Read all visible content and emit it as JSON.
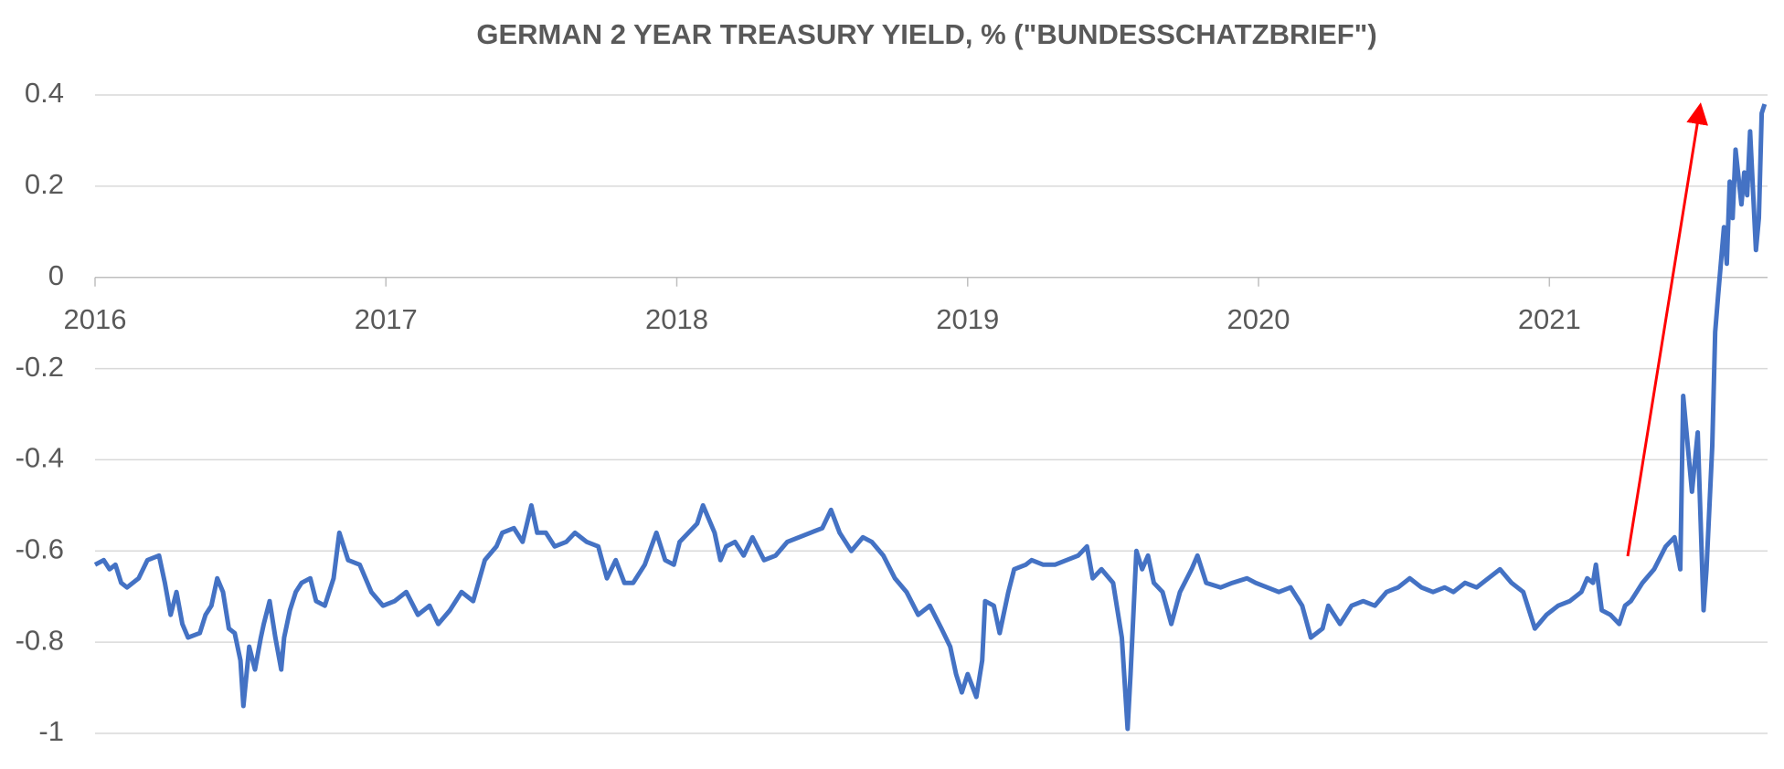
{
  "chart_data": {
    "type": "line",
    "title": "GERMAN 2 YEAR TREASURY YIELD, % (\"BUNDESSCHATZBRIEF\")",
    "x": [
      2016.0,
      2016.03,
      2016.05,
      2016.07,
      2016.09,
      2016.11,
      2016.15,
      2016.18,
      2016.22,
      2016.24,
      2016.26,
      2016.28,
      2016.3,
      2016.32,
      2016.36,
      2016.38,
      2016.4,
      2016.42,
      2016.44,
      2016.46,
      2016.48,
      2016.5,
      2016.51,
      2016.53,
      2016.55,
      2016.57,
      2016.58,
      2016.6,
      2016.62,
      2016.64,
      2016.65,
      2016.67,
      2016.69,
      2016.71,
      2016.74,
      2016.76,
      2016.79,
      2016.82,
      2016.84,
      2016.87,
      2016.91,
      2016.95,
      2016.99,
      2017.03,
      2017.07,
      2017.11,
      2017.15,
      2017.18,
      2017.22,
      2017.26,
      2017.3,
      2017.34,
      2017.38,
      2017.4,
      2017.44,
      2017.47,
      2017.5,
      2017.52,
      2017.55,
      2017.58,
      2017.62,
      2017.65,
      2017.69,
      2017.73,
      2017.76,
      2017.79,
      2017.82,
      2017.85,
      2017.89,
      2017.93,
      2017.96,
      2017.99,
      2018.01,
      2018.04,
      2018.07,
      2018.09,
      2018.13,
      2018.15,
      2018.17,
      2018.2,
      2018.23,
      2018.26,
      2018.3,
      2018.34,
      2018.38,
      2018.42,
      2018.46,
      2018.5,
      2018.53,
      2018.56,
      2018.6,
      2018.64,
      2018.67,
      2018.71,
      2018.75,
      2018.79,
      2018.83,
      2018.87,
      2018.91,
      2018.94,
      2018.96,
      2018.98,
      2019.0,
      2019.03,
      2019.05,
      2019.06,
      2019.09,
      2019.11,
      2019.14,
      2019.16,
      2019.2,
      2019.22,
      2019.26,
      2019.3,
      2019.34,
      2019.38,
      2019.41,
      2019.43,
      2019.46,
      2019.5,
      2019.53,
      2019.55,
      2019.56,
      2019.58,
      2019.6,
      2019.62,
      2019.64,
      2019.67,
      2019.7,
      2019.73,
      2019.77,
      2019.79,
      2019.82,
      2019.87,
      2019.91,
      2019.96,
      2019.99,
      2020.03,
      2020.07,
      2020.11,
      2020.15,
      2020.18,
      2020.22,
      2020.24,
      2020.28,
      2020.32,
      2020.36,
      2020.4,
      2020.44,
      2020.48,
      2020.52,
      2020.56,
      2020.6,
      2020.64,
      2020.67,
      2020.71,
      2020.75,
      2020.79,
      2020.83,
      2020.87,
      2020.91,
      2020.95,
      2020.99,
      2021.03,
      2021.07,
      2021.11,
      2021.13,
      2021.15,
      2021.16,
      2021.18,
      2021.21,
      2021.24,
      2021.26,
      2021.28,
      2021.3,
      2021.32,
      2021.36,
      2021.4,
      2021.43,
      2021.45,
      2021.46,
      2021.47,
      2021.49,
      2021.51,
      2021.53,
      2021.54,
      2021.56,
      2021.57,
      2021.58,
      2021.6,
      2021.61,
      2021.62,
      2021.63,
      2021.64,
      2021.66,
      2021.67,
      2021.68,
      2021.69,
      2021.71,
      2021.72,
      2021.73,
      2021.74
    ],
    "series": [
      {
        "color": "#4472c4",
        "values": [
          -0.63,
          -0.62,
          -0.64,
          -0.63,
          -0.67,
          -0.68,
          -0.66,
          -0.62,
          -0.61,
          -0.67,
          -0.74,
          -0.69,
          -0.76,
          -0.79,
          -0.78,
          -0.74,
          -0.72,
          -0.66,
          -0.69,
          -0.77,
          -0.78,
          -0.84,
          -0.94,
          -0.81,
          -0.86,
          -0.79,
          -0.76,
          -0.71,
          -0.79,
          -0.86,
          -0.79,
          -0.73,
          -0.69,
          -0.67,
          -0.66,
          -0.71,
          -0.72,
          -0.66,
          -0.56,
          -0.62,
          -0.63,
          -0.69,
          -0.72,
          -0.71,
          -0.69,
          -0.74,
          -0.72,
          -0.76,
          -0.73,
          -0.69,
          -0.71,
          -0.62,
          -0.59,
          -0.56,
          -0.55,
          -0.58,
          -0.5,
          -0.56,
          -0.56,
          -0.59,
          -0.58,
          -0.56,
          -0.58,
          -0.59,
          -0.66,
          -0.62,
          -0.67,
          -0.67,
          -0.63,
          -0.56,
          -0.62,
          -0.63,
          -0.58,
          -0.56,
          -0.54,
          -0.5,
          -0.56,
          -0.62,
          -0.59,
          -0.58,
          -0.61,
          -0.57,
          -0.62,
          -0.61,
          -0.58,
          -0.57,
          -0.56,
          -0.55,
          -0.51,
          -0.56,
          -0.6,
          -0.57,
          -0.58,
          -0.61,
          -0.66,
          -0.69,
          -0.74,
          -0.72,
          -0.77,
          -0.81,
          -0.87,
          -0.91,
          -0.87,
          -0.92,
          -0.84,
          -0.71,
          -0.72,
          -0.78,
          -0.69,
          -0.64,
          -0.63,
          -0.62,
          -0.63,
          -0.63,
          -0.62,
          -0.61,
          -0.59,
          -0.66,
          -0.64,
          -0.67,
          -0.79,
          -0.99,
          -0.87,
          -0.6,
          -0.64,
          -0.61,
          -0.67,
          -0.69,
          -0.76,
          -0.69,
          -0.64,
          -0.61,
          -0.67,
          -0.68,
          -0.67,
          -0.66,
          -0.67,
          -0.68,
          -0.69,
          -0.68,
          -0.72,
          -0.79,
          -0.77,
          -0.72,
          -0.76,
          -0.72,
          -0.71,
          -0.72,
          -0.69,
          -0.68,
          -0.66,
          -0.68,
          -0.69,
          -0.68,
          -0.69,
          -0.67,
          -0.68,
          -0.66,
          -0.64,
          -0.67,
          -0.69,
          -0.77,
          -0.74,
          -0.72,
          -0.71,
          -0.69,
          -0.66,
          -0.67,
          -0.63,
          -0.73,
          -0.74,
          -0.76,
          -0.72,
          -0.71,
          -0.69,
          -0.67,
          -0.64,
          -0.59,
          -0.57,
          -0.64,
          -0.26,
          -0.33,
          -0.47,
          -0.34,
          -0.73,
          -0.64,
          -0.37,
          -0.12,
          -0.04,
          0.11,
          0.03,
          0.21,
          0.13,
          0.28,
          0.16,
          0.23,
          0.18,
          0.32,
          0.06,
          0.13,
          0.36,
          0.38
        ]
      }
    ],
    "xlim": [
      2016,
      2021.75
    ],
    "xticks": [
      2016,
      2017,
      2018,
      2019,
      2020,
      2021
    ],
    "ylim": [
      -1,
      0.4
    ],
    "yticks": [
      -1,
      -0.8,
      -0.6,
      -0.4,
      -0.2,
      0,
      0.2,
      0.4
    ],
    "grid": true
  }
}
